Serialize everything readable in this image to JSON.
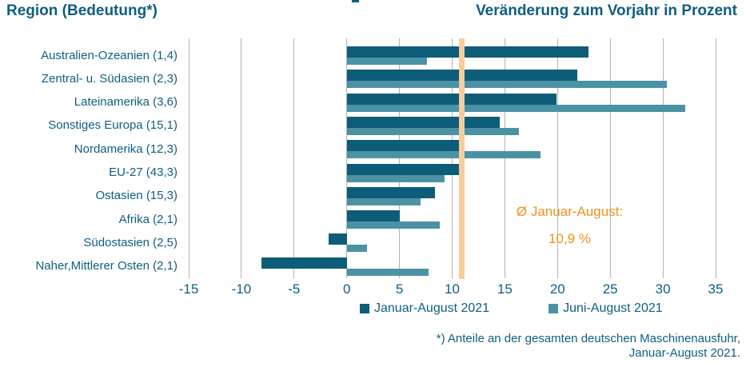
{
  "header": {
    "left": "Region (Bedeutung*)",
    "right": "Veränderung zum Vorjahr in Prozent"
  },
  "chart_data": {
    "type": "bar",
    "orientation": "horizontal",
    "categories": [
      "Australien-Ozeanien (1,4)",
      "Zentral- u. Südasien (2,3)",
      "Lateinamerika (3,6)",
      "Sonstiges Europa (15,1)",
      "Nordamerika (12,3)",
      "EU-27 (43,3)",
      "Ostasien (15,3)",
      "Afrika (2,1)",
      "Südostasien (2,5)",
      "Naher,Mittlerer Osten (2,1)"
    ],
    "series": [
      {
        "name": "Januar-August 2021",
        "color": "#0d5c78",
        "values": [
          22.9,
          21.9,
          19.9,
          14.5,
          11.1,
          10.8,
          8.4,
          5.0,
          -1.7,
          -8.1
        ]
      },
      {
        "name": "Juni-August 2021",
        "color": "#4b92a4",
        "values": [
          7.6,
          30.4,
          32.1,
          16.3,
          18.4,
          9.3,
          7.0,
          8.8,
          1.9,
          7.8
        ]
      }
    ],
    "xlim": [
      -15,
      35
    ],
    "xticks": [
      -15,
      -10,
      -5,
      0,
      5,
      10,
      15,
      20,
      25,
      30,
      35
    ],
    "grid": "vertical",
    "legend_position": "bottom",
    "average_line": {
      "value": 10.9,
      "band_color": "#f6cd9b",
      "label_line1": "Ø Januar-August:",
      "label_line2": "10,9 %",
      "label_color": "#f0921e"
    }
  },
  "footnote": {
    "line1": "*) Anteile an der gesamten deutschen Maschinenausfuhr,",
    "line2": "Januar-August 2021."
  },
  "colors": {
    "text": "#0f5e80",
    "series_dark": "#0d5c78",
    "series_light": "#4b92a4",
    "gridline": "#b3b3b3",
    "average_band": "#f6cd9b",
    "annotation": "#f0921e"
  }
}
